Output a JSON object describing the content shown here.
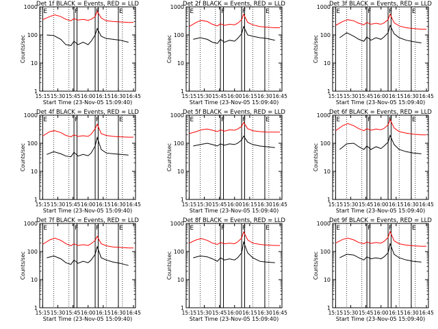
{
  "common": {
    "xlabel": "Start Time (23-Nov-05 15:09:40)",
    "ylabel": "Counts/sec",
    "x_ticks": [
      "15:15",
      "15:30",
      "15:45",
      "16:00",
      "16:15",
      "16:30",
      "16:45"
    ],
    "y_ticks": [
      "1",
      "10",
      "100",
      "1000"
    ],
    "xlim": [
      "15:12",
      "16:47"
    ],
    "ylim": [
      1,
      1000
    ],
    "y_scale": "log",
    "band_labels": [
      "E",
      "F",
      "F",
      "E"
    ],
    "colors": {
      "events": "#000000",
      "lld": "#ff0000"
    }
  },
  "chart_data": [
    {
      "type": "line",
      "title": "Det 1f  BLACK = Events, RED = LLD",
      "series": [
        {
          "name": "Events",
          "color": "#000000",
          "x": [
            "15:19",
            "15:26",
            "15:33",
            "15:38",
            "15:43",
            "15:46",
            "15:50",
            "15:55",
            "16:00",
            "16:03",
            "16:07",
            "16:09",
            "16:13",
            "16:18",
            "16:25",
            "16:32",
            "16:40"
          ],
          "values": [
            100,
            95,
            70,
            45,
            42,
            60,
            45,
            55,
            45,
            60,
            100,
            170,
            90,
            75,
            70,
            65,
            55
          ]
        },
        {
          "name": "LLD",
          "color": "#ff0000",
          "x": [
            "15:15",
            "15:22",
            "15:27",
            "15:33",
            "15:38",
            "15:43",
            "15:46",
            "15:50",
            "15:55",
            "16:00",
            "16:03",
            "16:07",
            "16:09",
            "16:13",
            "16:18",
            "16:25",
            "16:32",
            "16:40",
            "16:45"
          ],
          "values": [
            350,
            450,
            520,
            450,
            360,
            320,
            380,
            340,
            360,
            330,
            360,
            450,
            700,
            400,
            320,
            300,
            290,
            280,
            280
          ]
        }
      ]
    },
    {
      "type": "line",
      "title": "Det 2f  BLACK = Events, RED = LLD",
      "series": [
        {
          "name": "Events",
          "color": "#000000",
          "x": [
            "15:19",
            "15:26",
            "15:33",
            "15:38",
            "15:43",
            "15:46",
            "15:50",
            "15:55",
            "16:00",
            "16:03",
            "16:07",
            "16:09",
            "16:13",
            "16:18",
            "16:25",
            "16:32",
            "16:40"
          ],
          "values": [
            70,
            80,
            70,
            55,
            50,
            70,
            55,
            65,
            60,
            75,
            110,
            200,
            100,
            90,
            80,
            75,
            65
          ]
        },
        {
          "name": "LLD",
          "color": "#ff0000",
          "x": [
            "15:15",
            "15:22",
            "15:27",
            "15:33",
            "15:38",
            "15:43",
            "15:46",
            "15:50",
            "15:55",
            "16:00",
            "16:03",
            "16:07",
            "16:09",
            "16:13",
            "16:18",
            "16:25",
            "16:32",
            "16:40",
            "16:45"
          ],
          "values": [
            200,
            280,
            330,
            300,
            240,
            210,
            250,
            220,
            240,
            230,
            260,
            350,
            550,
            280,
            230,
            200,
            190,
            180,
            180
          ]
        }
      ]
    },
    {
      "type": "line",
      "title": "Det 3f  BLACK = Events, RED = LLD",
      "series": [
        {
          "name": "Events",
          "color": "#000000",
          "x": [
            "15:19",
            "15:26",
            "15:33",
            "15:38",
            "15:43",
            "15:46",
            "15:50",
            "15:55",
            "16:00",
            "16:03",
            "16:07",
            "16:09",
            "16:13",
            "16:18",
            "16:25",
            "16:32",
            "16:40"
          ],
          "values": [
            80,
            120,
            90,
            70,
            60,
            85,
            65,
            80,
            70,
            85,
            120,
            220,
            110,
            80,
            65,
            58,
            52
          ]
        },
        {
          "name": "LLD",
          "color": "#ff0000",
          "x": [
            "15:15",
            "15:22",
            "15:27",
            "15:33",
            "15:38",
            "15:43",
            "15:46",
            "15:50",
            "15:55",
            "16:00",
            "16:03",
            "16:07",
            "16:09",
            "16:13",
            "16:18",
            "16:25",
            "16:32",
            "16:40",
            "16:45"
          ],
          "values": [
            220,
            300,
            350,
            320,
            260,
            230,
            280,
            240,
            260,
            240,
            270,
            350,
            550,
            270,
            210,
            180,
            170,
            160,
            160
          ]
        }
      ]
    },
    {
      "type": "line",
      "title": "Det 4f  BLACK = Events, RED = LLD",
      "series": [
        {
          "name": "Events",
          "color": "#000000",
          "x": [
            "15:19",
            "15:26",
            "15:33",
            "15:38",
            "15:43",
            "15:46",
            "15:50",
            "15:55",
            "16:00",
            "16:03",
            "16:07",
            "16:09",
            "16:13",
            "16:18",
            "16:25",
            "16:32",
            "16:40"
          ],
          "values": [
            40,
            50,
            42,
            35,
            33,
            48,
            35,
            40,
            36,
            45,
            80,
            160,
            60,
            45,
            42,
            40,
            38
          ]
        },
        {
          "name": "LLD",
          "color": "#ff0000",
          "x": [
            "15:15",
            "15:22",
            "15:27",
            "15:33",
            "15:38",
            "15:43",
            "15:46",
            "15:50",
            "15:55",
            "16:00",
            "16:03",
            "16:07",
            "16:09",
            "16:13",
            "16:18",
            "16:25",
            "16:32",
            "16:40",
            "16:45"
          ],
          "values": [
            180,
            260,
            280,
            240,
            190,
            170,
            200,
            175,
            185,
            175,
            210,
            330,
            480,
            220,
            190,
            175,
            170,
            165,
            165
          ]
        }
      ]
    },
    {
      "type": "line",
      "title": "Det 5f  BLACK = Events, RED = LLD",
      "series": [
        {
          "name": "Events",
          "color": "#000000",
          "x": [
            "15:19",
            "15:26",
            "15:33",
            "15:38",
            "15:43",
            "15:46",
            "15:50",
            "15:55",
            "16:00",
            "16:03",
            "16:07",
            "16:09",
            "16:13",
            "16:18",
            "16:25",
            "16:32",
            "16:40"
          ],
          "values": [
            80,
            90,
            100,
            90,
            80,
            95,
            85,
            95,
            90,
            100,
            130,
            180,
            110,
            90,
            80,
            75,
            70
          ]
        },
        {
          "name": "LLD",
          "color": "#ff0000",
          "x": [
            "15:15",
            "15:22",
            "15:27",
            "15:33",
            "15:38",
            "15:43",
            "15:46",
            "15:50",
            "15:55",
            "16:00",
            "16:03",
            "16:07",
            "16:09",
            "16:13",
            "16:18",
            "16:25",
            "16:32",
            "16:40",
            "16:45"
          ],
          "values": [
            220,
            260,
            300,
            320,
            290,
            260,
            300,
            270,
            300,
            290,
            320,
            400,
            550,
            330,
            280,
            260,
            250,
            250,
            250
          ]
        }
      ]
    },
    {
      "type": "line",
      "title": "Det 6f  BLACK = Events, RED = LLD",
      "series": [
        {
          "name": "Events",
          "color": "#000000",
          "x": [
            "15:19",
            "15:26",
            "15:33",
            "15:38",
            "15:43",
            "15:46",
            "15:50",
            "15:55",
            "16:00",
            "16:03",
            "16:07",
            "16:09",
            "16:13",
            "16:18",
            "16:25",
            "16:32",
            "16:40"
          ],
          "values": [
            60,
            95,
            100,
            75,
            60,
            80,
            60,
            75,
            65,
            80,
            110,
            190,
            90,
            60,
            50,
            45,
            42
          ]
        },
        {
          "name": "LLD",
          "color": "#ff0000",
          "x": [
            "15:15",
            "15:22",
            "15:27",
            "15:33",
            "15:38",
            "15:43",
            "15:46",
            "15:50",
            "15:55",
            "16:00",
            "16:03",
            "16:07",
            "16:09",
            "16:13",
            "16:18",
            "16:25",
            "16:32",
            "16:40",
            "16:45"
          ],
          "values": [
            280,
            420,
            500,
            420,
            330,
            280,
            330,
            290,
            320,
            300,
            340,
            450,
            700,
            350,
            260,
            230,
            210,
            200,
            200
          ]
        }
      ]
    },
    {
      "type": "line",
      "title": "Det 7f  BLACK = Events, RED = LLD",
      "series": [
        {
          "name": "Events",
          "color": "#000000",
          "x": [
            "15:19",
            "15:26",
            "15:33",
            "15:38",
            "15:43",
            "15:46",
            "15:50",
            "15:55",
            "16:00",
            "16:03",
            "16:07",
            "16:09",
            "16:13",
            "16:18",
            "16:25",
            "16:32",
            "16:40"
          ],
          "values": [
            60,
            70,
            55,
            40,
            35,
            50,
            38,
            45,
            40,
            50,
            80,
            150,
            60,
            50,
            42,
            38,
            32
          ]
        },
        {
          "name": "LLD",
          "color": "#ff0000",
          "x": [
            "15:15",
            "15:22",
            "15:27",
            "15:33",
            "15:38",
            "15:43",
            "15:46",
            "15:50",
            "15:55",
            "16:00",
            "16:03",
            "16:07",
            "16:09",
            "16:13",
            "16:18",
            "16:25",
            "16:32",
            "16:40",
            "16:45"
          ],
          "values": [
            180,
            260,
            300,
            250,
            190,
            160,
            190,
            165,
            175,
            165,
            190,
            250,
            350,
            190,
            160,
            145,
            140,
            135,
            135
          ]
        }
      ]
    },
    {
      "type": "line",
      "title": "Det 8f  BLACK = Events, RED = LLD",
      "series": [
        {
          "name": "Events",
          "color": "#000000",
          "x": [
            "15:19",
            "15:26",
            "15:33",
            "15:38",
            "15:43",
            "15:46",
            "15:50",
            "15:55",
            "16:00",
            "16:03",
            "16:07",
            "16:09",
            "16:13",
            "16:18",
            "16:25",
            "16:32",
            "16:40"
          ],
          "values": [
            60,
            70,
            65,
            55,
            45,
            60,
            50,
            55,
            50,
            60,
            90,
            220,
            90,
            60,
            45,
            42,
            40
          ]
        },
        {
          "name": "LLD",
          "color": "#ff0000",
          "x": [
            "15:15",
            "15:22",
            "15:27",
            "15:33",
            "15:38",
            "15:43",
            "15:46",
            "15:50",
            "15:55",
            "16:00",
            "16:03",
            "16:07",
            "16:09",
            "16:13",
            "16:18",
            "16:25",
            "16:32",
            "16:40",
            "16:45"
          ],
          "values": [
            200,
            260,
            290,
            250,
            200,
            180,
            210,
            190,
            200,
            190,
            220,
            300,
            500,
            260,
            200,
            180,
            170,
            165,
            165
          ]
        }
      ]
    },
    {
      "type": "line",
      "title": "Det 9f  BLACK = Events, RED = LLD",
      "series": [
        {
          "name": "Events",
          "color": "#000000",
          "x": [
            "15:19",
            "15:26",
            "15:33",
            "15:38",
            "15:43",
            "15:46",
            "15:50",
            "15:55",
            "16:00",
            "16:03",
            "16:07",
            "16:09",
            "16:13",
            "16:18",
            "16:25",
            "16:32",
            "16:40"
          ],
          "values": [
            60,
            80,
            75,
            60,
            50,
            65,
            55,
            60,
            55,
            65,
            90,
            190,
            80,
            60,
            50,
            45,
            42
          ]
        },
        {
          "name": "LLD",
          "color": "#ff0000",
          "x": [
            "15:15",
            "15:22",
            "15:27",
            "15:33",
            "15:38",
            "15:43",
            "15:46",
            "15:50",
            "15:55",
            "16:00",
            "16:03",
            "16:07",
            "16:09",
            "16:13",
            "16:18",
            "16:25",
            "16:32",
            "16:40",
            "16:45"
          ],
          "values": [
            200,
            270,
            300,
            260,
            210,
            190,
            220,
            195,
            210,
            200,
            230,
            320,
            520,
            240,
            190,
            170,
            160,
            155,
            155
          ]
        }
      ]
    }
  ]
}
